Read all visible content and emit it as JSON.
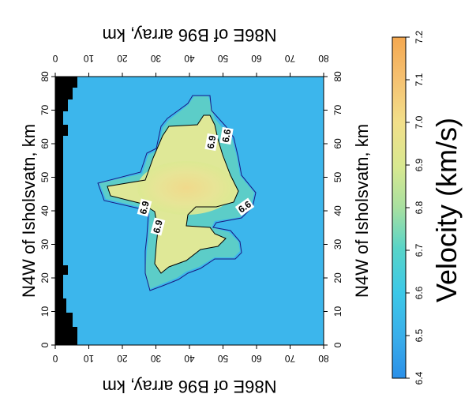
{
  "chart_data": {
    "type": "heatmap",
    "orientation": "rotated 90 degrees clockwise",
    "x_axis": {
      "label": "N86E of B96 array, km",
      "ticks": [
        "0",
        "10",
        "20",
        "30",
        "40",
        "50",
        "60",
        "70",
        "80"
      ],
      "range": [
        0,
        80
      ]
    },
    "y_axis": {
      "label": "N4W of Isholsvatn, km",
      "ticks": [
        "0",
        "10",
        "20",
        "30",
        "40",
        "50",
        "60",
        "70",
        "80"
      ],
      "range": [
        0,
        80
      ]
    },
    "colorbar": {
      "label": "Velocity (km/s)",
      "ticks": [
        "6.4",
        "6.5",
        "6.6",
        "6.7",
        "6.8",
        "6.9",
        "7.0",
        "7.1",
        "7.2"
      ],
      "range": [
        6.4,
        7.2
      ]
    },
    "background_velocity": 6.5,
    "contours": [
      {
        "level": "6.6",
        "label": "6.6"
      },
      {
        "level": "6.9",
        "label": "6.9"
      }
    ],
    "contour_labels": [
      "6.9",
      "6.9",
      "6.9",
      "6.6",
      "6.6"
    ],
    "peak_velocity": 7.05
  }
}
